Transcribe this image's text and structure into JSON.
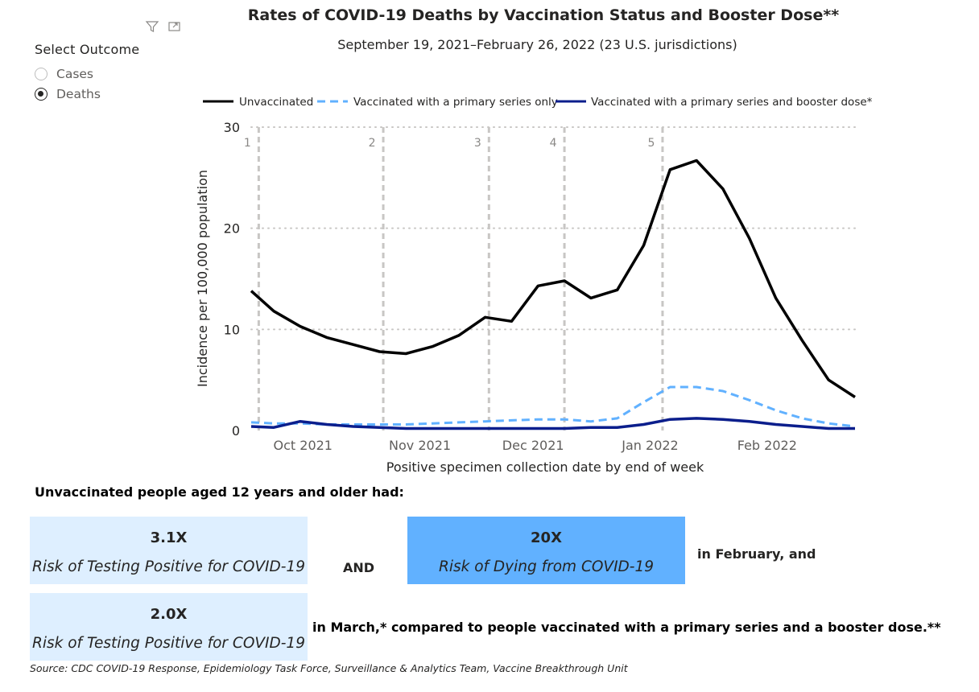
{
  "toolbar": {
    "icons": [
      "filter-icon",
      "focus-mode-icon"
    ]
  },
  "slicer": {
    "title": "Select Outcome",
    "options": [
      {
        "label": "Cases",
        "selected": false
      },
      {
        "label": "Deaths",
        "selected": true
      }
    ]
  },
  "chart_data": {
    "type": "line",
    "title": "Rates of COVID-19 Deaths by Vaccination Status and Booster Dose**",
    "subtitle": "September 19, 2021–February 26, 2022 (23 U.S. jurisdictions)",
    "xlabel": "Positive specimen collection date by end of week",
    "ylabel": "Incidence per 100,000 population",
    "ylim": [
      0,
      30
    ],
    "yticks": [
      0,
      10,
      20,
      30
    ],
    "xlim": [
      "2021-09-19",
      "2022-02-26"
    ],
    "xticks": [
      {
        "date": "2021-10-01",
        "label": "Oct 2021"
      },
      {
        "date": "2021-11-01",
        "label": "Nov 2021"
      },
      {
        "date": "2021-12-01",
        "label": "Dec 2021"
      },
      {
        "date": "2022-01-01",
        "label": "Jan 2022"
      },
      {
        "date": "2022-02-01",
        "label": "Feb 2022"
      }
    ],
    "grid": true,
    "legend_position": "top",
    "x": [
      "2021-09-19",
      "2021-09-25",
      "2021-10-02",
      "2021-10-09",
      "2021-10-16",
      "2021-10-23",
      "2021-10-30",
      "2021-11-06",
      "2021-11-13",
      "2021-11-20",
      "2021-11-27",
      "2021-12-04",
      "2021-12-11",
      "2021-12-18",
      "2021-12-25",
      "2022-01-01",
      "2022-01-08",
      "2022-01-15",
      "2022-01-22",
      "2022-01-29",
      "2022-02-05",
      "2022-02-12",
      "2022-02-19",
      "2022-02-26"
    ],
    "series": [
      {
        "name": "Unvaccinated",
        "color": "#000000",
        "dash": "solid",
        "values": [
          13.8,
          11.8,
          10.3,
          9.2,
          8.5,
          7.8,
          7.6,
          8.3,
          9.4,
          11.2,
          10.8,
          14.3,
          14.8,
          13.1,
          13.9,
          18.3,
          25.8,
          26.7,
          23.9,
          19.0,
          13.1,
          8.9,
          5.0,
          3.3
        ]
      },
      {
        "name": "Vaccinated with a primary series only",
        "color": "#61b1ff",
        "dash": "dashed",
        "values": [
          0.8,
          0.7,
          0.7,
          0.6,
          0.6,
          0.6,
          0.6,
          0.7,
          0.8,
          0.9,
          1.0,
          1.1,
          1.1,
          0.9,
          1.2,
          2.8,
          4.3,
          4.3,
          3.9,
          3.0,
          2.0,
          1.2,
          0.7,
          0.4
        ]
      },
      {
        "name": "Vaccinated with a primary series and booster dose*",
        "color": "#0b1e8c",
        "dash": "solid",
        "values": [
          0.4,
          0.3,
          0.9,
          0.6,
          0.4,
          0.3,
          0.2,
          0.2,
          0.2,
          0.2,
          0.2,
          0.2,
          0.2,
          0.3,
          0.3,
          0.6,
          1.1,
          1.2,
          1.1,
          0.9,
          0.6,
          0.4,
          0.2,
          0.2
        ]
      }
    ],
    "reference_lines": [
      {
        "label": "1",
        "date": "2021-09-21"
      },
      {
        "label": "2",
        "date": "2021-10-24"
      },
      {
        "label": "3",
        "date": "2021-11-21"
      },
      {
        "label": "4",
        "date": "2021-12-11"
      },
      {
        "label": "5",
        "date": "2022-01-06"
      }
    ]
  },
  "summary": {
    "lead": "Unvaccinated people aged 12 years and older had:",
    "box1": {
      "value": "3.1X",
      "label": "Risk of Testing Positive for COVID-19"
    },
    "and": "AND",
    "box2": {
      "value": "20X",
      "label": "Risk of Dying from COVID-19"
    },
    "feb_text": "in February, and",
    "box3": {
      "value": "2.0X",
      "label": "Risk of Testing Positive for COVID-19"
    },
    "march_text": "in March,* compared to people vaccinated with a primary series and a booster dose.**",
    "colors": {
      "light_box": "#deefff",
      "dark_box": "#61b1ff"
    }
  },
  "source": "Source: CDC COVID-19 Response, Epidemiology Task Force, Surveillance & Analytics Team, Vaccine Breakthrough Unit"
}
